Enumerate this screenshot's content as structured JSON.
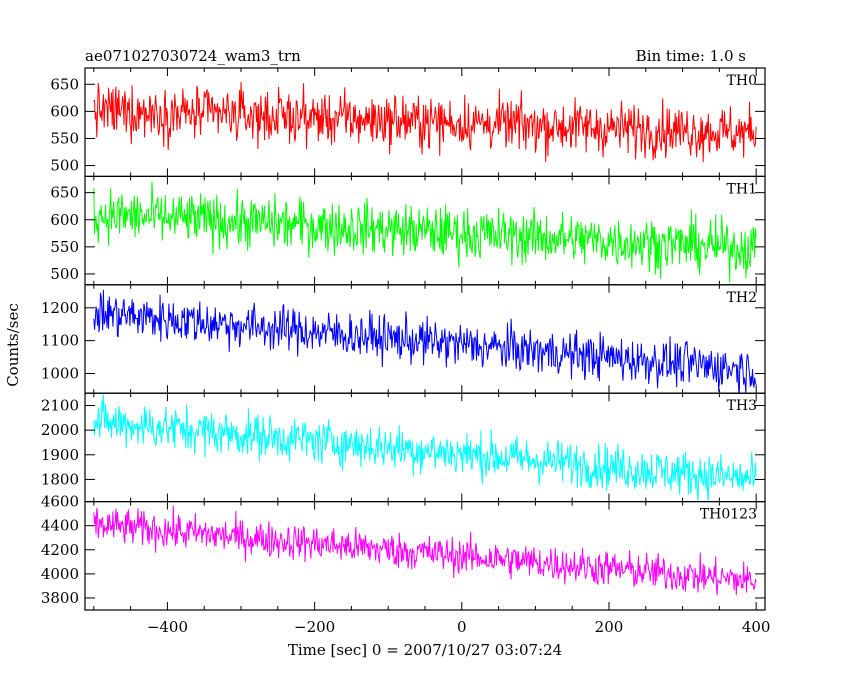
{
  "header": {
    "title": "ae071027030724_wam3_trn",
    "bin_time": "Bin time: 1.0 s"
  },
  "chart_data": {
    "type": "line",
    "title": "ae071027030724_wam3_trn",
    "xlabel": "Time [sec] 0 = 2007/10/27 03:07:24",
    "ylabel": "Counts/sec",
    "xlim": [
      -512,
      412
    ],
    "x_ticks": [
      -400,
      -200,
      0,
      200,
      400
    ],
    "x_range_data": [
      -500,
      400
    ],
    "bin_time_s": 1.0,
    "grid": false,
    "panels": [
      {
        "name": "TH0",
        "color": "#ff0000",
        "ylim": [
          480,
          680
        ],
        "y_ticks": [
          500,
          550,
          600,
          650
        ],
        "trend": {
          "start": 602,
          "end": 560
        },
        "noise_sd": 24
      },
      {
        "name": "TH1",
        "color": "#00ff00",
        "ylim": [
          480,
          680
        ],
        "y_ticks": [
          500,
          550,
          600,
          650
        ],
        "trend": {
          "start": 610,
          "end": 547
        },
        "noise_sd": 24
      },
      {
        "name": "TH2",
        "color": "#0000ff",
        "ylim": [
          940,
          1270
        ],
        "y_ticks": [
          1000,
          1100,
          1200
        ],
        "trend": {
          "start": 1185,
          "end": 1010
        },
        "noise_sd": 34
      },
      {
        "name": "TH3",
        "color": "#00ffff",
        "ylim": [
          1710,
          2150
        ],
        "y_ticks": [
          1800,
          1900,
          2000,
          2100
        ],
        "trend": {
          "start": 2035,
          "end": 1800
        },
        "noise_sd": 45
      },
      {
        "name": "TH0123",
        "color": "#ff00ff",
        "ylim": [
          3700,
          4600
        ],
        "y_ticks": [
          3800,
          4000,
          4200,
          4400,
          4600
        ],
        "trend": {
          "start": 4410,
          "end": 3940
        },
        "noise_sd": 75
      }
    ]
  }
}
